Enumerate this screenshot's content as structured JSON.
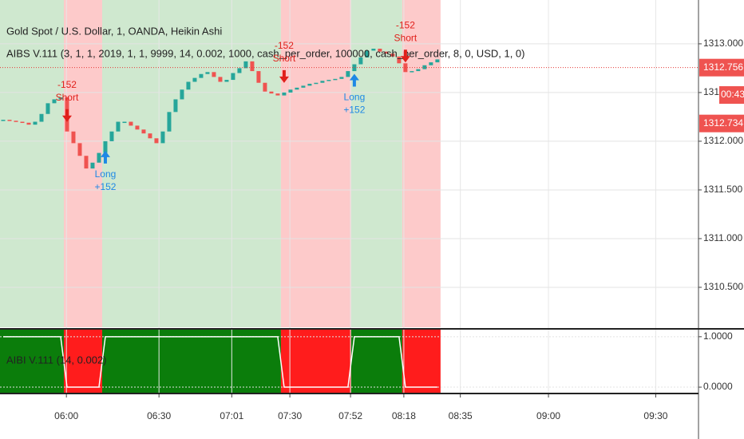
{
  "chart_data": {
    "type": "candlestick",
    "title": "Gold Spot / U.S. Dollar, 1, OANDA, Heikin Ashi",
    "strategy": "AIBS V.111 (3, 1, 1, 2019, 1, 1, 9999, 14, 0.002, 1000, cash_per_order, 100000, cash_per_order, 8, 0, USD, 1, 0)",
    "indicator": "AIBI V.111 (14, 0.002)",
    "up_color": "#26a69a",
    "down_color": "#ef5350",
    "closes": [
      1312.22,
      1312.21,
      1312.2,
      1312.19,
      1312.17,
      1312.2,
      1312.28,
      1312.39,
      1312.43,
      1312.45,
      1312.1,
      1311.98,
      1311.85,
      1311.72,
      1311.78,
      1311.88,
      1312.0,
      1312.1,
      1312.2,
      1312.2,
      1312.16,
      1312.12,
      1312.08,
      1312.03,
      1311.98,
      1312.1,
      1312.3,
      1312.43,
      1312.53,
      1312.61,
      1312.65,
      1312.69,
      1312.71,
      1312.66,
      1312.61,
      1312.63,
      1312.7,
      1312.75,
      1312.82,
      1312.72,
      1312.6,
      1312.51,
      1312.49,
      1312.47,
      1312.5,
      1312.53,
      1312.55,
      1312.57,
      1312.59,
      1312.6,
      1312.62,
      1312.63,
      1312.64,
      1312.66,
      1312.72,
      1312.79,
      1312.86,
      1312.93,
      1312.95,
      1312.92,
      1312.9,
      1312.87,
      1312.8,
      1312.71,
      1312.72,
      1312.74,
      1312.78,
      1312.81,
      1312.84
    ],
    "signal": [
      1,
      1,
      1,
      1,
      1,
      1,
      1,
      1,
      1,
      1,
      0,
      0,
      0,
      0,
      0,
      0,
      1,
      1,
      1,
      1,
      1,
      1,
      1,
      1,
      1,
      1,
      1,
      1,
      1,
      1,
      1,
      1,
      1,
      1,
      1,
      1,
      1,
      1,
      1,
      1,
      1,
      1,
      1,
      1,
      0,
      0,
      0,
      0,
      0,
      0,
      0,
      0,
      0,
      0,
      0,
      1,
      1,
      1,
      1,
      1,
      1,
      1,
      1,
      0,
      0,
      0,
      0,
      0,
      0
    ],
    "trades": [
      {
        "index": 10,
        "text": [
          "-152",
          "Short"
        ]
      },
      {
        "index": 16,
        "text": [
          "Long",
          "+152"
        ]
      },
      {
        "index": 44,
        "text": [
          "-152",
          "Short"
        ]
      },
      {
        "index": 55,
        "text": [
          "Long",
          "+152"
        ]
      },
      {
        "index": 63,
        "text": [
          "-152",
          "Short"
        ]
      }
    ],
    "ylim": [
      1310.09,
      1313.45
    ],
    "yticks": [
      {
        "value": 1313,
        "label": "1313.000"
      },
      {
        "value": 1312.5,
        "label": "1312.500"
      },
      {
        "value": 1312,
        "label": "1312.000"
      },
      {
        "value": 1311.5,
        "label": "1311.500"
      },
      {
        "value": 1311,
        "label": "1311.000"
      },
      {
        "value": 1310.5,
        "label": "1310.500"
      }
    ],
    "y2lim": [
      -0.11,
      1.14
    ],
    "y2ticks": [
      {
        "value": 1,
        "label": "1.0000"
      },
      {
        "value": 0,
        "label": "0.0000"
      }
    ],
    "xlim": [
      -0.5,
      108.9
    ],
    "xticks": [
      {
        "value": 9.9,
        "label": "06:00"
      },
      {
        "value": 24.4,
        "label": "06:30"
      },
      {
        "value": 35.8,
        "label": "07:01"
      },
      {
        "value": 44.9,
        "label": "07:30"
      },
      {
        "value": 54.4,
        "label": "07:52"
      },
      {
        "value": 62.75,
        "label": "08:18"
      },
      {
        "value": 71.6,
        "label": "08:35"
      },
      {
        "value": 85.4,
        "label": "09:00"
      },
      {
        "value": 102.2,
        "label": "09:30"
      }
    ],
    "last_price": {
      "value": 1312.756,
      "label": "1312.756"
    },
    "countdown": "00:43",
    "bid_price": {
      "value": 1312.734,
      "label": "1312.734"
    }
  }
}
